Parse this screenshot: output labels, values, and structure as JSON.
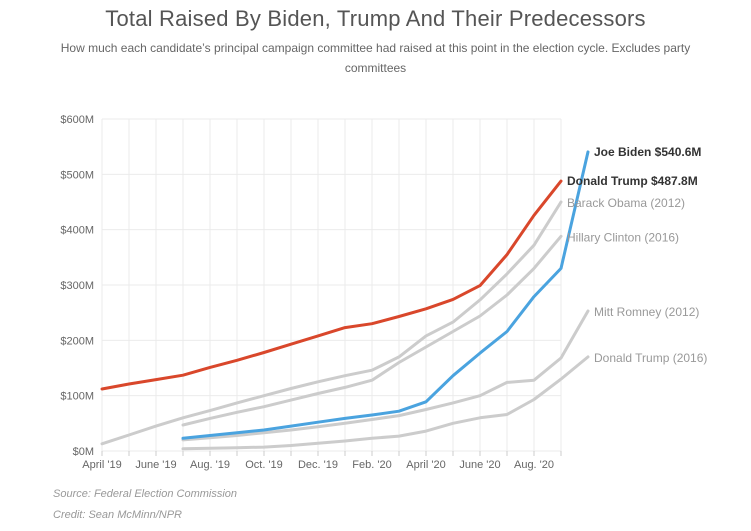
{
  "chart_data": {
    "type": "line",
    "title": "Total Raised By Biden, Trump And Their Predecessors",
    "subtitle": "How much each candidate’s principal campaign committee had raised at this point in the election cycle. Excludes party committees",
    "xlabel": "",
    "ylabel": "",
    "ylim": [
      0,
      600
    ],
    "yticks": [
      0,
      100,
      200,
      300,
      400,
      500,
      600
    ],
    "ytick_labels": [
      "$0M",
      "$100M",
      "$200M",
      "$300M",
      "$400M",
      "$500M",
      "$600M"
    ],
    "x_months": [
      "Apr 2019",
      "May 2019",
      "Jun 2019",
      "Jul 2019",
      "Aug 2019",
      "Sep 2019",
      "Oct 2019",
      "Nov 2019",
      "Dec 2019",
      "Jan 2020",
      "Feb 2020",
      "Mar 2020",
      "Apr 2020",
      "May 2020",
      "Jun 2020",
      "Jul 2020",
      "Aug 2020",
      "Sep 2020"
    ],
    "xtick_labels": [
      {
        "month_index": 0,
        "label": "April '19"
      },
      {
        "month_index": 2,
        "label": "June '19"
      },
      {
        "month_index": 4,
        "label": "Aug. '19"
      },
      {
        "month_index": 6,
        "label": "Oct. '19"
      },
      {
        "month_index": 8,
        "label": "Dec. '19"
      },
      {
        "month_index": 10,
        "label": "Feb. '20"
      },
      {
        "month_index": 12,
        "label": "April '20"
      },
      {
        "month_index": 14,
        "label": "June '20"
      },
      {
        "month_index": 16,
        "label": "Aug. '20"
      }
    ],
    "grid": true,
    "series": [
      {
        "name": "Barack Obama (2012)",
        "label": "Barack Obama (2012)",
        "color": "#cccccc",
        "emphasis": false,
        "start_index": 0,
        "values": [
          13,
          29,
          45,
          60,
          73,
          87,
          100,
          113,
          125,
          136,
          146,
          170,
          208,
          233,
          273,
          320,
          372,
          450
        ]
      },
      {
        "name": "Hillary Clinton (2016)",
        "label": "Hillary Clinton (2016)",
        "color": "#cccccc",
        "emphasis": false,
        "start_index": 3,
        "values": [
          47,
          59,
          70,
          80,
          92,
          104,
          115,
          128,
          160,
          188,
          216,
          244,
          282,
          330,
          388
        ]
      },
      {
        "name": "Mitt Romney (2012)",
        "label": "Mitt Romney (2012)",
        "color": "#cccccc",
        "emphasis": false,
        "start_index": 3,
        "values": [
          20,
          24,
          28,
          33,
          38,
          44,
          50,
          57,
          64,
          75,
          87,
          100,
          124,
          128,
          168,
          253
        ]
      },
      {
        "name": "Donald Trump (2016)",
        "label": "Donald Trump (2016)",
        "color": "#cccccc",
        "emphasis": false,
        "start_index": 3,
        "values": [
          4,
          5,
          6,
          7,
          10,
          14,
          18,
          23,
          27,
          36,
          50,
          60,
          66,
          93,
          130,
          170
        ]
      },
      {
        "name": "Joe Biden",
        "label": "Joe Biden $540.6M",
        "color": "#4aa3df",
        "emphasis": true,
        "start_index": 3,
        "values": [
          23,
          28,
          33,
          38,
          45,
          52,
          59,
          65,
          72,
          89,
          136,
          177,
          216,
          279,
          330,
          540.6
        ]
      },
      {
        "name": "Donald Trump",
        "label": "Donald Trump $487.8M",
        "color": "#d9472b",
        "emphasis": true,
        "start_index": 0,
        "values": [
          112,
          121,
          129,
          137,
          151,
          164,
          178,
          193,
          208,
          223,
          230,
          243,
          257,
          274,
          299,
          355,
          426,
          487.8
        ]
      }
    ],
    "source": "Source: Federal Election Commission",
    "credit": "Credit: Sean McMinn/NPR"
  }
}
